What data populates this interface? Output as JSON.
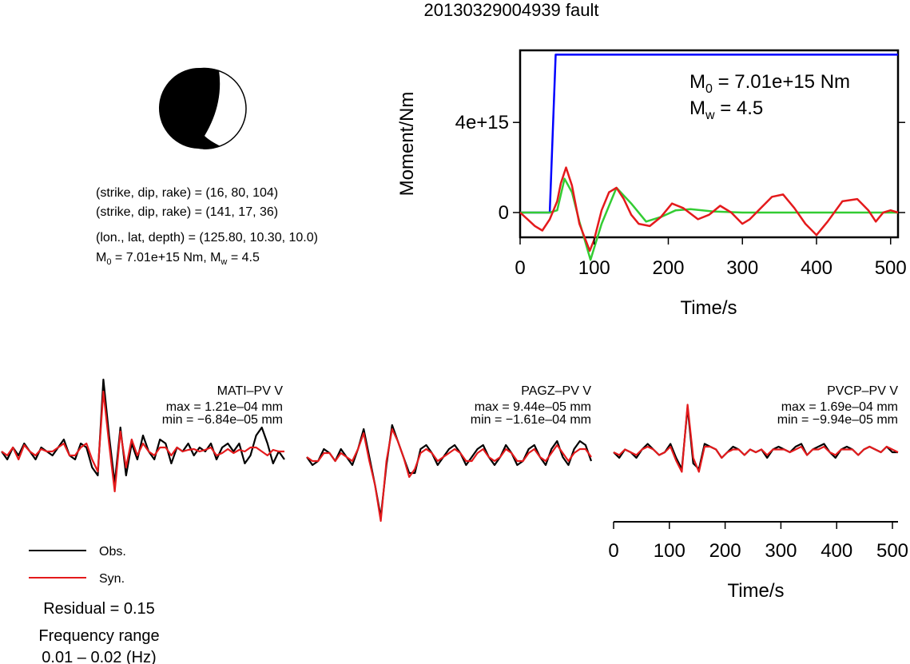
{
  "title": "20130329004939 fault",
  "mechanism": {
    "plane1": "(strike, dip, rake) = (16, 80, 104)",
    "plane2": "(strike, dip, rake) = (141, 17, 36)",
    "location": "(lon., lat, depth) = (125.80, 10.30, 10.0)",
    "moment_prefix": "M",
    "moment_sub": "0",
    "moment_value": " = 7.01e+15 Nm, M",
    "mw_sub": "w",
    "mw_value": " = 4.5"
  },
  "legend": {
    "obs": "Obs.",
    "syn": "Syn.",
    "residual": "Residual = 0.15",
    "freq_title": "Frequency range",
    "freq_value": "0.01 – 0.02 (Hz)",
    "colors": {
      "obs": "#000000",
      "syn": "#e41a1c"
    }
  },
  "moment_plot": {
    "ylabel": "Moment/Nm",
    "xlabel": "Time/s",
    "m0_prefix": "M",
    "m0_sub": "0",
    "m0_value": " = 7.01e+15 Nm",
    "mw_prefix": "M",
    "mw_sub": "w",
    "mw_value": " = 4.5"
  },
  "waveform_plot": {
    "xlabel": "Time/s"
  },
  "chart_data": [
    {
      "type": "line",
      "title": "",
      "xlabel": "Time/s",
      "ylabel": "Moment/Nm",
      "xlim": [
        0,
        510
      ],
      "ylim": [
        -1100000000000000.0,
        7200000000000000.0
      ],
      "xticks": [
        0,
        100,
        200,
        300,
        400,
        500
      ],
      "xtick_labels": [
        "0",
        "100",
        "200",
        "300",
        "400",
        "500"
      ],
      "yticks": [
        0,
        4000000000000000.0
      ],
      "ytick_labels": [
        "0",
        "4e+15"
      ],
      "grid": false,
      "series": [
        {
          "color": "#0000ff",
          "x": [
            0,
            40,
            48,
            510
          ],
          "y": [
            0,
            0,
            7010000000000000.0,
            7010000000000000.0
          ]
        },
        {
          "color": "#33cc33",
          "x": [
            0,
            20,
            40,
            50,
            60,
            70,
            80,
            95,
            110,
            130,
            150,
            170,
            190,
            210,
            230,
            260,
            300,
            350,
            400,
            450,
            500,
            510
          ],
          "y": [
            0,
            0,
            0,
            100000000000000.0,
            1500000000000000.0,
            900000000000000.0,
            -400000000000000.0,
            -2100000000000000.0,
            -500000000000000.0,
            1100000000000000.0,
            400000000000000.0,
            -400000000000000.0,
            -200000000000000.0,
            100000000000000.0,
            150000000000000.0,
            50000000000000.0,
            0,
            0,
            0,
            0,
            0,
            0
          ]
        },
        {
          "color": "#e41a1c",
          "x": [
            0,
            10,
            20,
            30,
            40,
            50,
            55,
            62,
            70,
            80,
            94,
            100,
            110,
            120,
            130,
            140,
            150,
            160,
            175,
            190,
            205,
            220,
            240,
            255,
            270,
            285,
            300,
            310,
            325,
            340,
            355,
            370,
            385,
            400,
            415,
            435,
            455,
            470,
            480,
            490,
            500,
            510
          ],
          "y": [
            0,
            -300000000000000.0,
            -600000000000000.0,
            -800000000000000.0,
            -300000000000000.0,
            500000000000000.0,
            1300000000000000.0,
            2000000000000000.0,
            1200000000000000.0,
            -500000000000000.0,
            -1700000000000000.0,
            -1200000000000000.0,
            100000000000000.0,
            900000000000000.0,
            1100000000000000.0,
            600000000000000.0,
            -100000000000000.0,
            -500000000000000.0,
            -600000000000000.0,
            -200000000000000.0,
            400000000000000.0,
            200000000000000.0,
            -300000000000000.0,
            -100000000000000.0,
            300000000000000.0,
            0,
            -500000000000000.0,
            -300000000000000.0,
            200000000000000.0,
            700000000000000.0,
            800000000000000.0,
            200000000000000.0,
            -500000000000000.0,
            -1000000000000000.0,
            -400000000000000.0,
            500000000000000.0,
            600000000000000.0,
            100000000000000.0,
            -400000000000000.0,
            0,
            100000000000000.0,
            0
          ]
        }
      ]
    },
    {
      "type": "line",
      "xlabel": "Time/s",
      "xlim": [
        0,
        510
      ],
      "xticks": [
        0,
        100,
        200,
        300,
        400,
        500
      ],
      "xtick_labels": [
        "0",
        "100",
        "200",
        "300",
        "400",
        "500"
      ],
      "stations": [
        {
          "name": "MATI–PV V",
          "max": "max = 1.21e–04 mm",
          "min": "min = −6.84e–05 mm",
          "obs": [
            0,
            -0.1,
            0.05,
            -0.05,
            0.1,
            0,
            -0.1,
            0.05,
            0,
            -0.05,
            0.05,
            0.15,
            -0.05,
            -0.1,
            0.1,
            0.05,
            -0.2,
            -0.3,
            0.9,
            0.2,
            -0.4,
            0.3,
            -0.3,
            0.1,
            -0.1,
            0.2,
            0,
            -0.1,
            0.15,
            0.1,
            -0.15,
            0.05,
            0,
            0.1,
            -0.05,
            0.05,
            0,
            0.1,
            -0.1,
            0.05,
            0.1,
            0,
            0.1,
            -0.15,
            -0.05,
            0.2,
            0.3,
            0.1,
            -0.15,
            0,
            -0.1
          ],
          "syn": [
            0,
            -0.05,
            0.05,
            -0.1,
            0.08,
            0,
            -0.05,
            0.03,
            0,
            0,
            0.05,
            0.1,
            -0.05,
            -0.05,
            0.05,
            0.1,
            -0.1,
            -0.25,
            0.75,
            0.1,
            -0.5,
            0.25,
            -0.2,
            0.15,
            -0.05,
            0.1,
            0,
            -0.05,
            0.05,
            0.05,
            -0.05,
            0.05,
            0,
            0.02,
            0.03,
            0,
            0.02,
            0.05,
            -0.05,
            -0.02,
            0.03,
            -0.02,
            0.02,
            0,
            0.05,
            0.05,
            0,
            -0.05,
            0.02,
            0,
            0
          ]
        },
        {
          "name": "PAGZ–PV V",
          "max": "max = 9.44e–05 mm",
          "min": "min = −1.61e–04 mm",
          "obs": [
            0,
            -0.1,
            -0.05,
            0.1,
            0.05,
            -0.05,
            0.1,
            0,
            -0.1,
            0.1,
            0.35,
            0,
            -0.35,
            -0.75,
            -0.1,
            0.4,
            0.2,
            0,
            -0.2,
            -0.2,
            0.1,
            0.15,
            0.05,
            -0.1,
            0,
            0.1,
            0.15,
            0.05,
            -0.1,
            0,
            0.1,
            0.15,
            0,
            -0.1,
            0,
            0.15,
            0.05,
            -0.1,
            -0.05,
            0.1,
            0.15,
            0,
            -0.1,
            0.1,
            0.2,
            0,
            -0.1,
            0.1,
            0.2,
            0.15,
            -0.05
          ],
          "syn": [
            0,
            -0.05,
            -0.05,
            0.05,
            0.05,
            -0.05,
            0.05,
            0,
            -0.05,
            0.1,
            0.3,
            -0.05,
            -0.35,
            -0.8,
            -0.05,
            0.35,
            0.2,
            0,
            -0.25,
            -0.15,
            0.05,
            0.1,
            0.05,
            -0.05,
            0,
            0.05,
            0.1,
            0.05,
            -0.05,
            -0.05,
            0.05,
            0.1,
            0,
            -0.05,
            0,
            0.1,
            0.05,
            -0.05,
            -0.05,
            0.05,
            0.1,
            0,
            -0.05,
            0.05,
            0.15,
            0.05,
            -0.05,
            0.05,
            0.1,
            0.1,
            0
          ]
        },
        {
          "name": "PVCP–PV V",
          "max": "max = 1.69e–04 mm",
          "min": "min = −9.94e–05 mm",
          "obs": [
            0,
            -0.1,
            0.05,
            0,
            -0.1,
            0.05,
            0.15,
            0.05,
            -0.05,
            0,
            0.15,
            -0.1,
            -0.3,
            0.8,
            -0.2,
            -0.3,
            0.15,
            0.1,
            0.05,
            -0.1,
            0,
            0.1,
            0.05,
            -0.05,
            0.05,
            0,
            0.05,
            -0.1,
            0.05,
            0.1,
            0.05,
            0,
            0.1,
            0.15,
            -0.05,
            0.05,
            0.1,
            0.15,
            0,
            -0.1,
            0.05,
            0.1,
            0.05,
            -0.05,
            0.05,
            0.1,
            0.05,
            0,
            0.1,
            0,
            0
          ],
          "syn": [
            0,
            -0.05,
            0.05,
            0,
            -0.05,
            0.05,
            0.1,
            0.05,
            -0.05,
            0,
            0.1,
            -0.15,
            -0.35,
            0.85,
            -0.1,
            -0.35,
            0.1,
            0.1,
            0.05,
            -0.1,
            0,
            0.05,
            0.05,
            -0.05,
            0.05,
            0,
            0.05,
            -0.05,
            0.05,
            0.05,
            0.05,
            0,
            0.05,
            0.1,
            -0.05,
            0.05,
            0.05,
            0.1,
            0,
            -0.05,
            0.05,
            0.05,
            0.05,
            -0.05,
            0.05,
            0.1,
            0.05,
            0,
            0.1,
            0.05,
            0
          ]
        }
      ]
    }
  ]
}
